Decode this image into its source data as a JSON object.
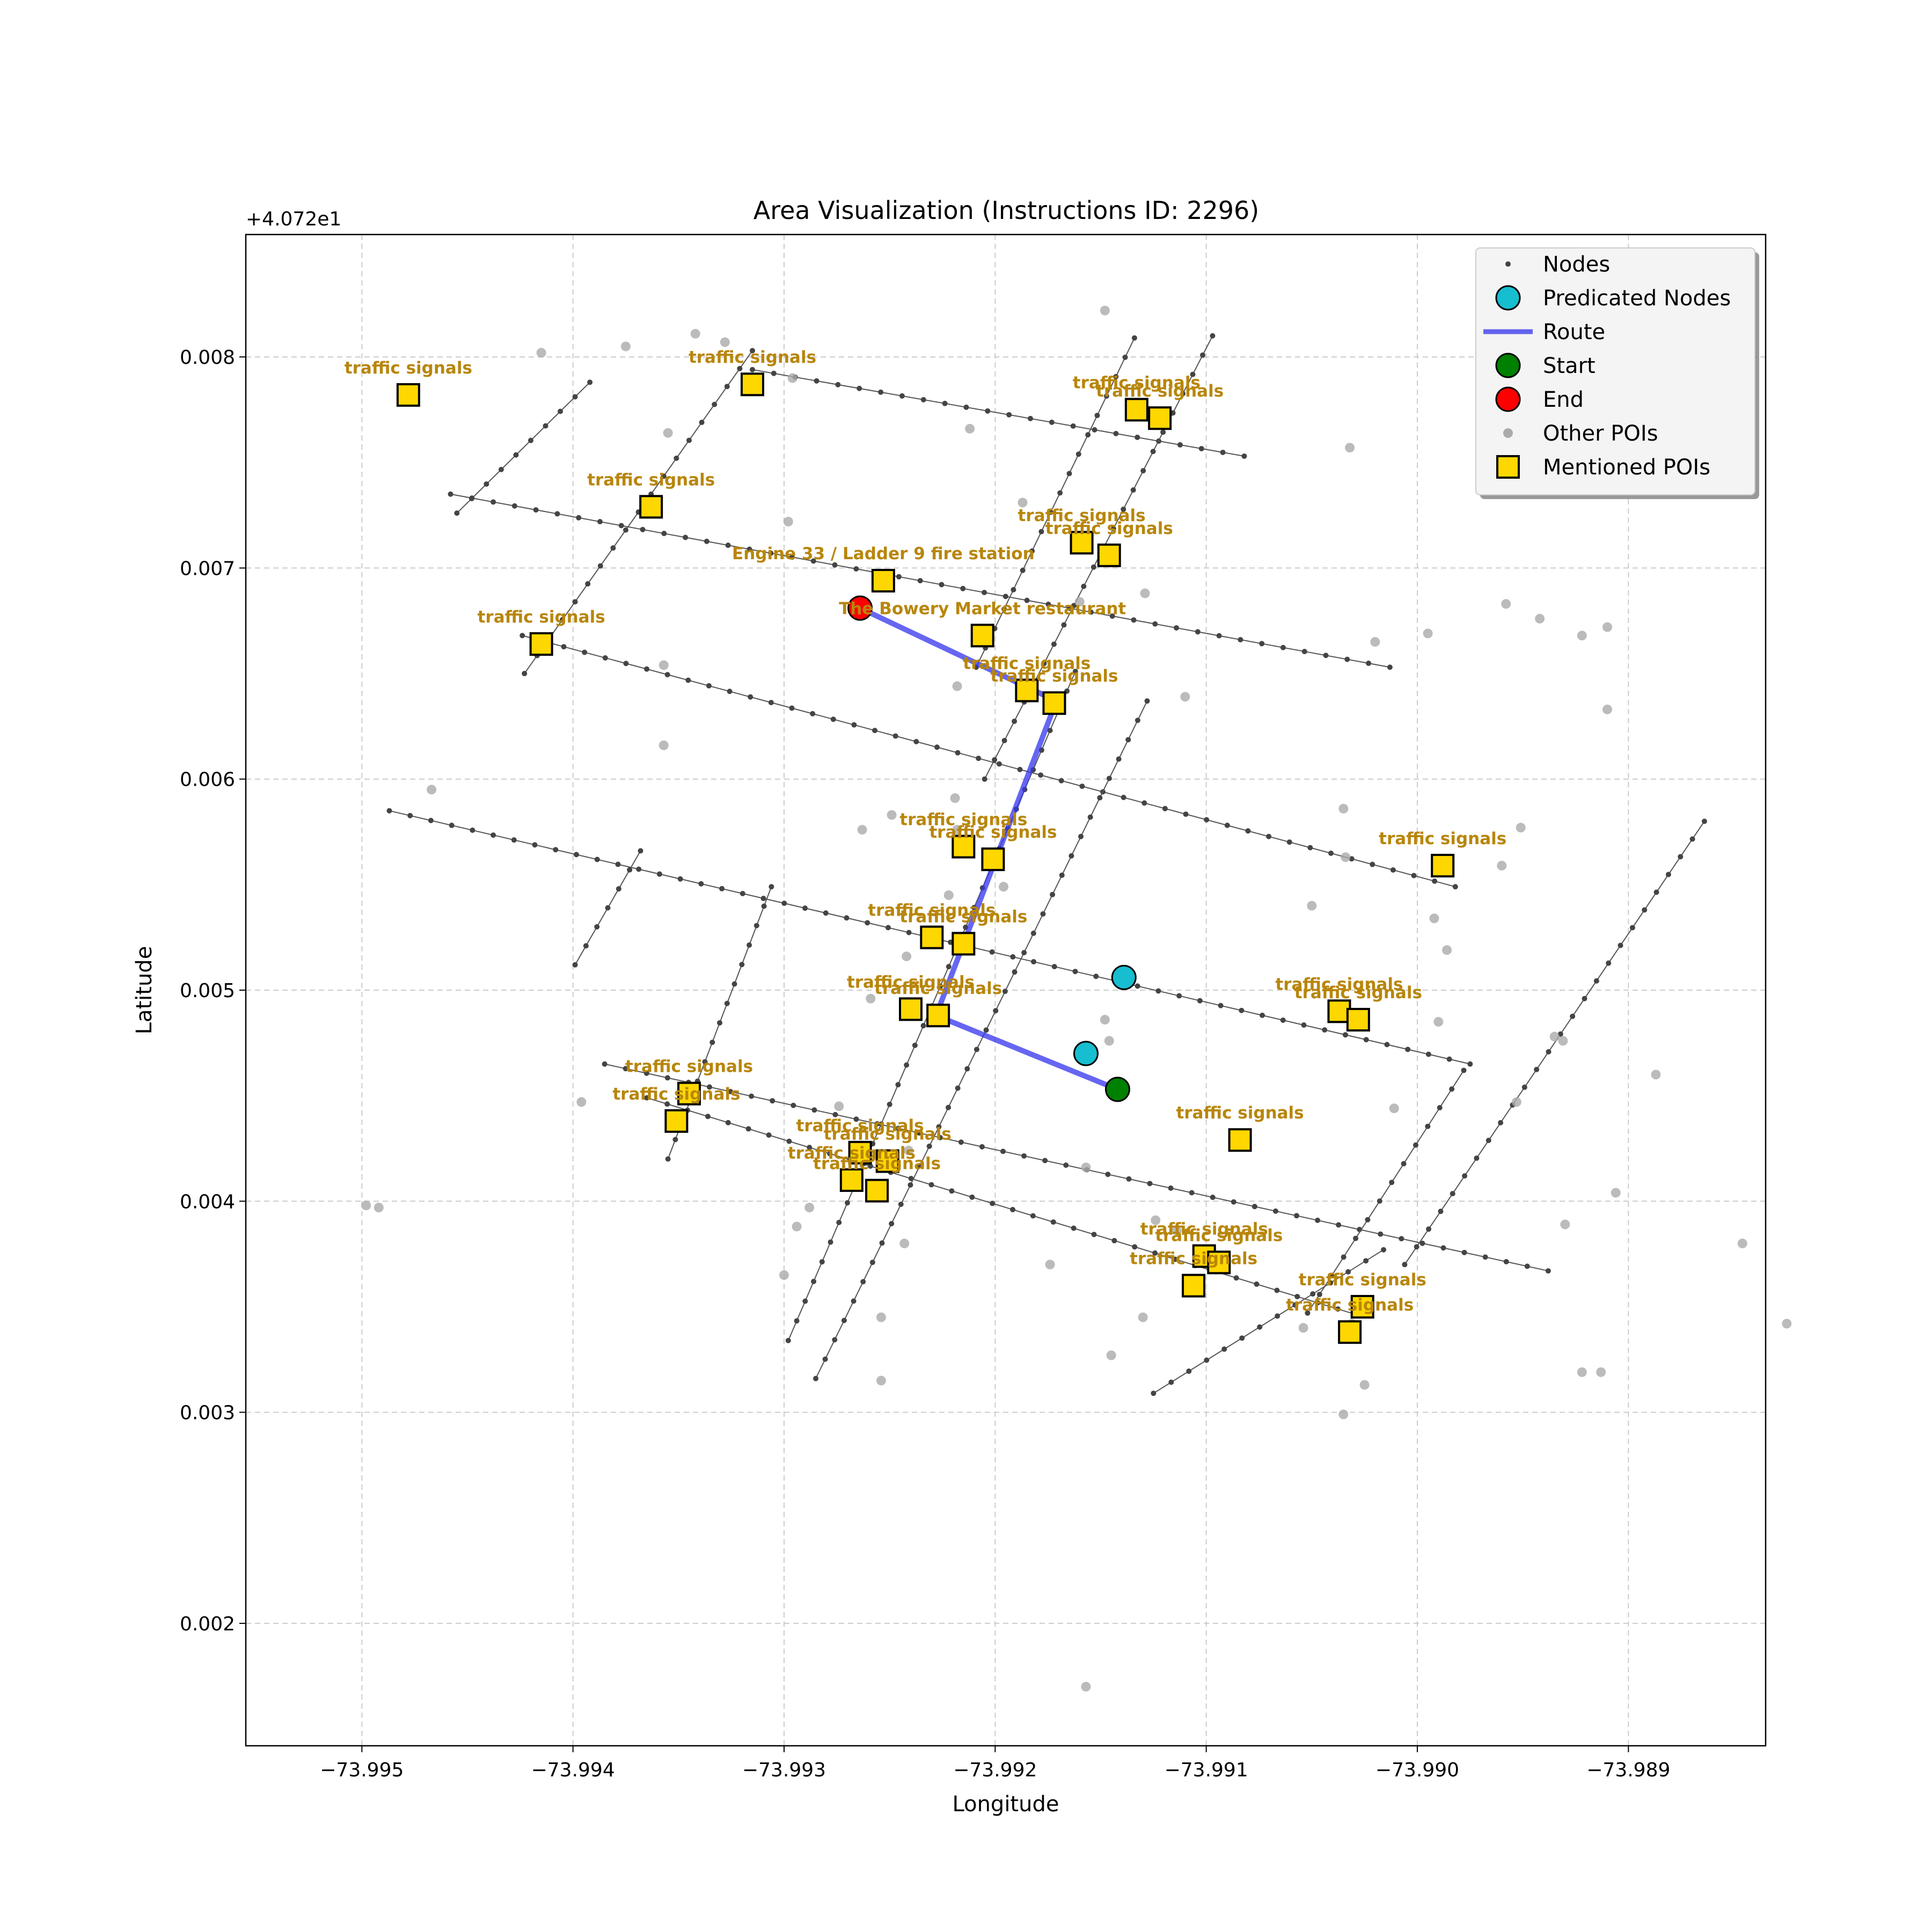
{
  "chart_data": {
    "type": "scatter",
    "title": "Area Visualization (Instructions ID: 2296)",
    "xlabel": "Longitude",
    "ylabel": "Latitude",
    "offset_label": "+4.072e1",
    "xlim": [
      -73.99555,
      -73.98835
    ],
    "ylim": [
      0.00142,
      0.00858
    ],
    "xticks": [
      {
        "value": -73.995,
        "label": "−73.995"
      },
      {
        "value": -73.994,
        "label": "−73.994"
      },
      {
        "value": -73.993,
        "label": "−73.993"
      },
      {
        "value": -73.992,
        "label": "−73.992"
      },
      {
        "value": -73.991,
        "label": "−73.991"
      },
      {
        "value": -73.99,
        "label": "−73.990"
      },
      {
        "value": -73.989,
        "label": "−73.989"
      }
    ],
    "yticks": [
      {
        "value": 0.002,
        "label": "0.002"
      },
      {
        "value": 0.003,
        "label": "0.003"
      },
      {
        "value": 0.004,
        "label": "0.004"
      },
      {
        "value": 0.005,
        "label": "0.005"
      },
      {
        "value": 0.006,
        "label": "0.006"
      },
      {
        "value": 0.007,
        "label": "0.007"
      },
      {
        "value": 0.008,
        "label": "0.008"
      }
    ],
    "grid": true,
    "legend_placement": "top-right",
    "legend": [
      {
        "key": "nodes",
        "label": "Nodes"
      },
      {
        "key": "predicated",
        "label": "Predicated Nodes"
      },
      {
        "key": "route",
        "label": "Route"
      },
      {
        "key": "start",
        "label": "Start"
      },
      {
        "key": "end",
        "label": "End"
      },
      {
        "key": "other_pois",
        "label": "Other POIs"
      },
      {
        "key": "mentioned_pois",
        "label": "Mentioned POIs"
      }
    ],
    "colors": {
      "nodes": "#444444",
      "edges": "#555555",
      "predicated": "#17BECF",
      "route": "#3333EE",
      "start": "#008000",
      "end": "#FF0000",
      "other_pois": "#AAAAAA",
      "mentioned_pois": "#FFD700",
      "poi_label": "#B8860B",
      "grid": "#CCCCCC"
    },
    "streets": [
      [
        [
          -73.99458,
          0.00735
        ],
        [
          -73.99013,
          0.00653
        ]
      ],
      [
        [
          -73.99424,
          0.00668
        ],
        [
          -73.98982,
          0.00549
        ]
      ],
      [
        [
          -73.99487,
          0.00585
        ],
        [
          -73.98975,
          0.00465
        ]
      ],
      [
        [
          -73.99385,
          0.00465
        ],
        [
          -73.98938,
          0.00367
        ]
      ],
      [
        [
          -73.99365,
          0.00449
        ],
        [
          -73.99028,
          0.00346
        ]
      ],
      [
        [
          -73.99315,
          0.00794
        ],
        [
          -73.99082,
          0.00753
        ]
      ],
      [
        [
          -73.99455,
          0.00726
        ],
        [
          -73.99392,
          0.00788
        ]
      ],
      [
        [
          -73.99423,
          0.0065
        ],
        [
          -73.99315,
          0.00803
        ]
      ],
      [
        [
          -73.99399,
          0.00512
        ],
        [
          -73.99368,
          0.00566
        ]
      ],
      [
        [
          -73.99355,
          0.0042
        ],
        [
          -73.99306,
          0.00549
        ]
      ],
      [
        [
          -73.99298,
          0.00334
        ],
        [
          -73.99162,
          0.00651
        ]
      ],
      [
        [
          -73.99285,
          0.00316
        ],
        [
          -73.99128,
          0.00637
        ]
      ],
      [
        [
          -73.99209,
          0.00653
        ],
        [
          -73.99134,
          0.00809
        ]
      ],
      [
        [
          -73.99205,
          0.006
        ],
        [
          -73.99097,
          0.0081
        ]
      ],
      [
        [
          -73.99125,
          0.00309
        ],
        [
          -73.99016,
          0.00377
        ]
      ],
      [
        [
          -73.99052,
          0.00347
        ],
        [
          -73.98978,
          0.00462
        ]
      ],
      [
        [
          -73.99006,
          0.0037
        ],
        [
          -73.98864,
          0.0058
        ]
      ]
    ],
    "route": [
      [
        -73.99264,
        0.00681
      ],
      [
        -73.99171,
        0.00637
      ],
      [
        -73.99228,
        0.00488
      ],
      [
        -73.99142,
        0.00453
      ]
    ],
    "start": {
      "x": -73.99142,
      "y": 0.00453
    },
    "end": {
      "x": -73.99264,
      "y": 0.00681
    },
    "predicated_nodes": [
      {
        "x": -73.99139,
        "y": 0.00506
      },
      {
        "x": -73.99157,
        "y": 0.0047
      }
    ],
    "other_pois": [
      [
        -73.99415,
        0.00802
      ],
      [
        -73.99375,
        0.00805
      ],
      [
        -73.99342,
        0.00811
      ],
      [
        -73.99328,
        0.00807
      ],
      [
        -73.99296,
        0.0079
      ],
      [
        -73.99355,
        0.00764
      ],
      [
        -73.99212,
        0.00766
      ],
      [
        -73.99148,
        0.00822
      ],
      [
        -73.99032,
        0.00757
      ],
      [
        -73.99187,
        0.00731
      ],
      [
        -73.99298,
        0.00722
      ],
      [
        -73.99129,
        0.00688
      ],
      [
        -73.9916,
        0.00684
      ],
      [
        -73.9902,
        0.00665
      ],
      [
        -73.98958,
        0.00683
      ],
      [
        -73.98942,
        0.00676
      ],
      [
        -73.98922,
        0.00668
      ],
      [
        -73.9891,
        0.00672
      ],
      [
        -73.98995,
        0.00669
      ],
      [
        -73.9891,
        0.00633
      ],
      [
        -73.9911,
        0.00639
      ],
      [
        -73.99357,
        0.00654
      ],
      [
        -73.99357,
        0.00616
      ],
      [
        -73.99218,
        0.00644
      ],
      [
        -73.99467,
        0.00595
      ],
      [
        -73.99219,
        0.00591
      ],
      [
        -73.99263,
        0.00576
      ],
      [
        -73.99249,
        0.00583
      ],
      [
        -73.99218,
        0.00576
      ],
      [
        -73.99035,
        0.00586
      ],
      [
        -73.99034,
        0.00563
      ],
      [
        -73.9905,
        0.0054
      ],
      [
        -73.99196,
        0.00549
      ],
      [
        -73.98951,
        0.00577
      ],
      [
        -73.9896,
        0.00559
      ],
      [
        -73.98992,
        0.00534
      ],
      [
        -73.98986,
        0.00519
      ],
      [
        -73.99222,
        0.00545
      ],
      [
        -73.99242,
        0.00516
      ],
      [
        -73.99259,
        0.00496
      ],
      [
        -73.99148,
        0.00486
      ],
      [
        -73.99146,
        0.00476
      ],
      [
        -73.98935,
        0.00478
      ],
      [
        -73.98931,
        0.00476
      ],
      [
        -73.98887,
        0.0046
      ],
      [
        -73.99011,
        0.00444
      ],
      [
        -73.98953,
        0.00447
      ],
      [
        -73.99274,
        0.00445
      ],
      [
        -73.99396,
        0.00447
      ],
      [
        -73.99157,
        0.00416
      ],
      [
        -73.99241,
        0.00424
      ],
      [
        -73.99498,
        0.00398
      ],
      [
        -73.99492,
        0.00397
      ],
      [
        -73.99288,
        0.00397
      ],
      [
        -73.99294,
        0.00388
      ],
      [
        -73.99243,
        0.0038
      ],
      [
        -73.993,
        0.00365
      ],
      [
        -73.99124,
        0.00391
      ],
      [
        -73.99114,
        0.00386
      ],
      [
        -73.99145,
        0.00327
      ],
      [
        -73.9913,
        0.00345
      ],
      [
        -73.99054,
        0.0034
      ],
      [
        -73.99031,
        0.00342
      ],
      [
        -73.9893,
        0.00389
      ],
      [
        -73.98906,
        0.00404
      ],
      [
        -73.98846,
        0.0038
      ],
      [
        -73.98825,
        0.00342
      ],
      [
        -73.99025,
        0.00313
      ],
      [
        -73.99035,
        0.00299
      ],
      [
        -73.98922,
        0.00319
      ],
      [
        -73.98913,
        0.00319
      ],
      [
        -73.99254,
        0.00345
      ],
      [
        -73.99254,
        0.00315
      ],
      [
        -73.99157,
        0.0017
      ],
      [
        -73.99174,
        0.0037
      ],
      [
        -73.9899,
        0.00485
      ]
    ],
    "mentioned_pois": [
      {
        "x": -73.99478,
        "y": 0.00782,
        "label": "traffic signals"
      },
      {
        "x": -73.99315,
        "y": 0.00787,
        "label": "traffic signals"
      },
      {
        "x": -73.99363,
        "y": 0.00729,
        "label": "traffic signals"
      },
      {
        "x": -73.99415,
        "y": 0.00664,
        "label": "traffic signals"
      },
      {
        "x": -73.99133,
        "y": 0.00775,
        "label": "traffic signals"
      },
      {
        "x": -73.99122,
        "y": 0.00771,
        "label": "traffic signals"
      },
      {
        "x": -73.99159,
        "y": 0.00712,
        "label": "traffic signals"
      },
      {
        "x": -73.99146,
        "y": 0.00706,
        "label": "traffic signals"
      },
      {
        "x": -73.99253,
        "y": 0.00694,
        "label": "Engine 33 / Ladder 9 fire station"
      },
      {
        "x": -73.99206,
        "y": 0.00668,
        "label": "The Bowery Market restaurant"
      },
      {
        "x": -73.99185,
        "y": 0.00642,
        "label": "traffic signals"
      },
      {
        "x": -73.99172,
        "y": 0.00636,
        "label": "traffic signals"
      },
      {
        "x": -73.99215,
        "y": 0.00568,
        "label": "traffic signals"
      },
      {
        "x": -73.99201,
        "y": 0.00562,
        "label": "traffic signals"
      },
      {
        "x": -73.98988,
        "y": 0.00559,
        "label": "traffic signals"
      },
      {
        "x": -73.9923,
        "y": 0.00525,
        "label": "traffic signals"
      },
      {
        "x": -73.99215,
        "y": 0.00522,
        "label": "traffic signals"
      },
      {
        "x": -73.9924,
        "y": 0.00491,
        "label": "traffic signals"
      },
      {
        "x": -73.99227,
        "y": 0.00488,
        "label": "traffic signals"
      },
      {
        "x": -73.99037,
        "y": 0.0049,
        "label": "traffic signals"
      },
      {
        "x": -73.99028,
        "y": 0.00486,
        "label": "traffic signals"
      },
      {
        "x": -73.99345,
        "y": 0.00451,
        "label": "traffic signals"
      },
      {
        "x": -73.99351,
        "y": 0.00438,
        "label": "traffic signals"
      },
      {
        "x": -73.99084,
        "y": 0.00429,
        "label": "traffic signals"
      },
      {
        "x": -73.99264,
        "y": 0.00423,
        "label": "traffic signals"
      },
      {
        "x": -73.99251,
        "y": 0.00419,
        "label": "traffic signals"
      },
      {
        "x": -73.99268,
        "y": 0.0041,
        "label": "traffic signals"
      },
      {
        "x": -73.99256,
        "y": 0.00405,
        "label": "traffic signals"
      },
      {
        "x": -73.99101,
        "y": 0.00374,
        "label": "traffic signals"
      },
      {
        "x": -73.99094,
        "y": 0.00371,
        "label": "traffic signals"
      },
      {
        "x": -73.99106,
        "y": 0.0036,
        "label": "traffic signals"
      },
      {
        "x": -73.99026,
        "y": 0.0035,
        "label": "traffic signals"
      },
      {
        "x": -73.99032,
        "y": 0.00338,
        "label": "traffic signals"
      }
    ]
  }
}
